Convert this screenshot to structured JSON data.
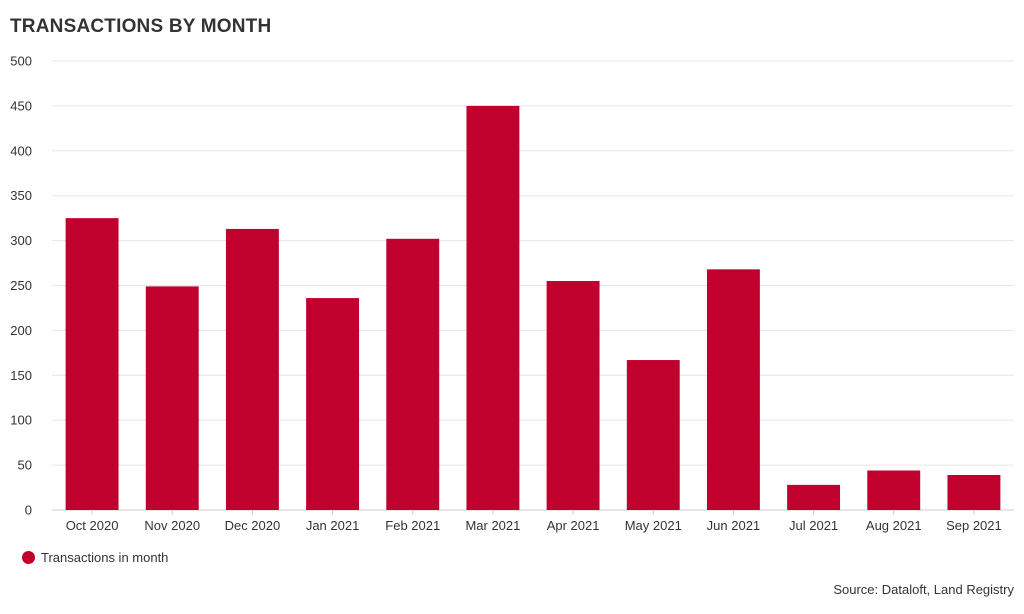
{
  "colors": {
    "bar": "#c0002d",
    "grid": "#e6e6e6",
    "axis": "#cccccc",
    "text": "#333333"
  },
  "legend": {
    "label": "Transactions in month"
  },
  "source": "Source: Dataloft, Land Registry",
  "chart_data": {
    "type": "bar",
    "title": "TRANSACTIONS BY MONTH",
    "xlabel": "",
    "ylabel": "",
    "ylim": [
      0,
      500
    ],
    "yticks": [
      0,
      50,
      100,
      150,
      200,
      250,
      300,
      350,
      400,
      450,
      500
    ],
    "grid": true,
    "legend_position": "bottom-left",
    "categories": [
      "Oct 2020",
      "Nov 2020",
      "Dec 2020",
      "Jan 2021",
      "Feb 2021",
      "Mar 2021",
      "Apr 2021",
      "May 2021",
      "Jun 2021",
      "Jul 2021",
      "Aug 2021",
      "Sep 2021"
    ],
    "series": [
      {
        "name": "Transactions in month",
        "values": [
          325,
          249,
          313,
          236,
          302,
          450,
          255,
          167,
          268,
          28,
          44,
          39
        ]
      }
    ]
  }
}
